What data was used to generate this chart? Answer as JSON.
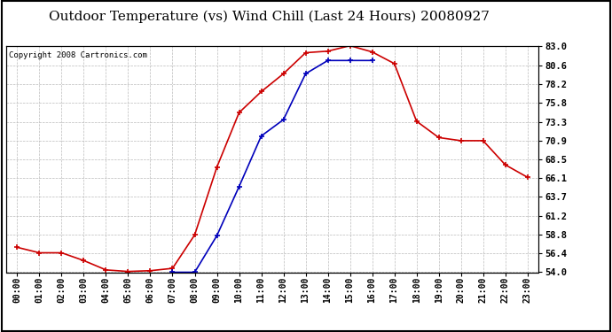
{
  "title": "Outdoor Temperature (vs) Wind Chill (Last 24 Hours) 20080927",
  "copyright": "Copyright 2008 Cartronics.com",
  "x_labels": [
    "00:00",
    "01:00",
    "02:00",
    "03:00",
    "04:00",
    "05:00",
    "06:00",
    "07:00",
    "08:00",
    "09:00",
    "10:00",
    "11:00",
    "12:00",
    "13:00",
    "14:00",
    "15:00",
    "16:00",
    "17:00",
    "18:00",
    "19:00",
    "20:00",
    "21:00",
    "22:00",
    "23:00"
  ],
  "red_y": [
    57.2,
    56.5,
    56.5,
    55.5,
    54.3,
    54.1,
    54.2,
    54.5,
    58.8,
    67.5,
    74.5,
    77.2,
    79.5,
    82.2,
    82.4,
    83.1,
    82.3,
    80.8,
    73.4,
    71.3,
    70.9,
    70.9,
    67.8,
    66.2
  ],
  "blue_y": [
    null,
    null,
    null,
    null,
    null,
    null,
    null,
    54.0,
    54.0,
    58.7,
    65.0,
    71.5,
    73.6,
    79.5,
    81.2,
    81.2,
    81.2,
    null,
    null,
    null,
    null,
    null,
    null,
    null
  ],
  "ylim": [
    54.0,
    83.0
  ],
  "yticks": [
    54.0,
    56.4,
    58.8,
    61.2,
    63.7,
    66.1,
    68.5,
    70.9,
    73.3,
    75.8,
    78.2,
    80.6,
    83.0
  ],
  "red_color": "#cc0000",
  "blue_color": "#0000bb",
  "grid_color": "#bbbbbb",
  "bg_color": "#ffffff",
  "outer_bg": "#ffffff",
  "title_fontsize": 11,
  "copyright_fontsize": 6.5,
  "tick_fontsize": 7,
  "ytick_fontsize": 7.5
}
